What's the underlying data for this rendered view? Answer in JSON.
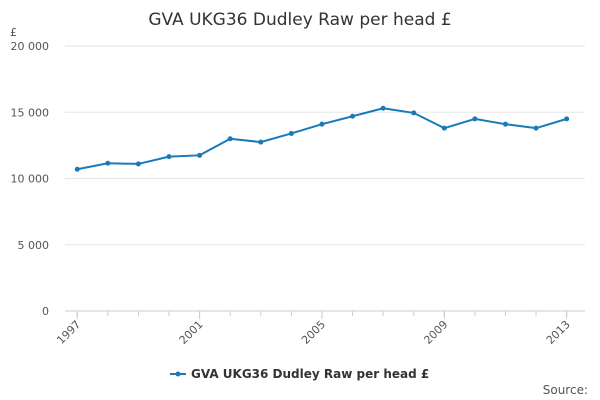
{
  "chart_data": {
    "type": "line",
    "title": "GVA UKG36 Dudley Raw per head £",
    "y_unit": "£",
    "source": "Source:",
    "x": [
      1997,
      1998,
      1999,
      2000,
      2001,
      2002,
      2003,
      2004,
      2005,
      2006,
      2007,
      2008,
      2009,
      2010,
      2011,
      2012,
      2013
    ],
    "series": [
      {
        "name": "GVA UKG36 Dudley Raw per head £",
        "color": "#1a7ab9",
        "values": [
          10700,
          11150,
          11100,
          11650,
          11750,
          13000,
          12750,
          13400,
          14100,
          14700,
          15300,
          14950,
          13800,
          14500,
          14100,
          13800,
          14500
        ]
      }
    ],
    "xlim": [
      1996.6,
      2013.6
    ],
    "xticks": [
      1997,
      2001,
      2005,
      2009,
      2013
    ],
    "ylim": [
      0,
      20000
    ],
    "yticks": [
      0,
      {
        "value": 5000,
        "label": "5 000"
      },
      {
        "value": 10000,
        "label": "10 000"
      },
      {
        "value": 15000,
        "label": "15 000"
      },
      {
        "value": 20000,
        "label": "20 000"
      }
    ],
    "grid": true,
    "legend": "bottom"
  }
}
